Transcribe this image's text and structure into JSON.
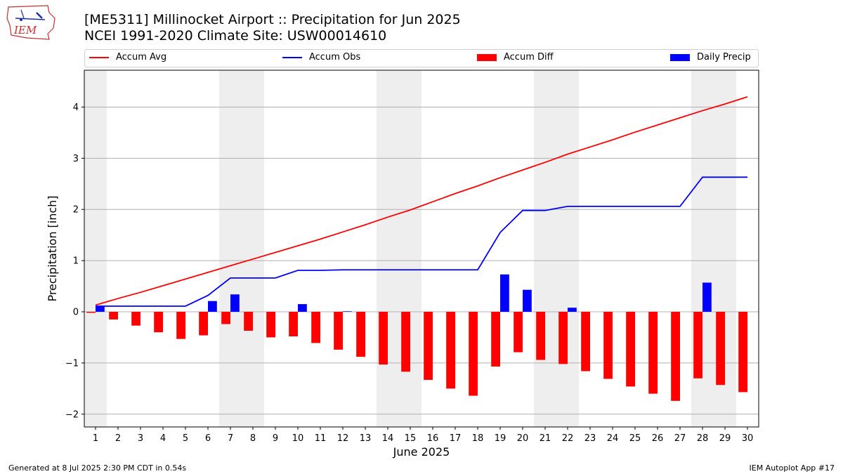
{
  "header": {
    "logo_text": "IEM",
    "title": "[ME5311] Millinocket Airport :: Precipitation for Jun 2025",
    "subtitle": "NCEI 1991-2020 Climate Site: USW00014610"
  },
  "legend": {
    "items": [
      {
        "label": "Accum Avg",
        "kind": "line",
        "color": "#ff0000"
      },
      {
        "label": "Accum Obs",
        "kind": "line",
        "color": "#0000ff"
      },
      {
        "label": "Accum Diff",
        "kind": "bar",
        "color": "#ff0000"
      },
      {
        "label": "Daily Precip",
        "kind": "bar",
        "color": "#0000ff"
      }
    ]
  },
  "footer": {
    "left": "Generated at 8 Jul 2025 2:30 PM CDT in 0.54s",
    "right": "IEM Autoplot App #17"
  },
  "chart_data": {
    "type": "bar",
    "xlabel": "June 2025",
    "ylabel": "Precipitation [inch]",
    "xlim": [
      0.5,
      30.5
    ],
    "ylim": [
      -2.25,
      4.72
    ],
    "yticks": [
      -2,
      -1,
      0,
      1,
      2,
      3,
      4
    ],
    "ytick_labels": [
      "−2",
      "−1",
      "0",
      "1",
      "2",
      "3",
      "4"
    ],
    "days": [
      1,
      2,
      3,
      4,
      5,
      6,
      7,
      8,
      9,
      10,
      11,
      12,
      13,
      14,
      15,
      16,
      17,
      18,
      19,
      20,
      21,
      22,
      23,
      24,
      25,
      26,
      27,
      28,
      29,
      30
    ],
    "weekend_days": [
      1,
      7,
      8,
      14,
      15,
      21,
      22,
      28,
      29
    ],
    "grid": "horizontal",
    "legend_position": "top",
    "series": [
      {
        "name": "Accum Avg",
        "kind": "line",
        "color": "#ff0000",
        "values": [
          0.13,
          0.26,
          0.38,
          0.51,
          0.64,
          0.77,
          0.9,
          1.03,
          1.16,
          1.29,
          1.42,
          1.56,
          1.7,
          1.85,
          1.99,
          2.15,
          2.31,
          2.46,
          2.62,
          2.77,
          2.92,
          3.08,
          3.22,
          3.36,
          3.51,
          3.65,
          3.79,
          3.93,
          4.06,
          4.2
        ]
      },
      {
        "name": "Accum Obs",
        "kind": "line",
        "color": "#0000ff",
        "values": [
          0.11,
          0.11,
          0.11,
          0.11,
          0.11,
          0.32,
          0.66,
          0.66,
          0.66,
          0.81,
          0.81,
          0.82,
          0.82,
          0.82,
          0.82,
          0.82,
          0.82,
          0.82,
          1.55,
          1.98,
          1.98,
          2.06,
          2.06,
          2.06,
          2.06,
          2.06,
          2.06,
          2.63,
          2.63,
          2.63
        ]
      },
      {
        "name": "Accum Diff",
        "kind": "bar",
        "color": "#ff0000",
        "values": [
          -0.02,
          -0.15,
          -0.27,
          -0.4,
          -0.53,
          -0.46,
          -0.24,
          -0.37,
          -0.5,
          -0.48,
          -0.61,
          -0.74,
          -0.88,
          -1.03,
          -1.17,
          -1.33,
          -1.5,
          -1.64,
          -1.07,
          -0.79,
          -0.94,
          -1.02,
          -1.16,
          -1.31,
          -1.46,
          -1.6,
          -1.74,
          -1.3,
          -1.43,
          -1.57
        ]
      },
      {
        "name": "Daily Precip",
        "kind": "bar",
        "color": "#0000ff",
        "values": [
          0.11,
          0,
          0,
          0,
          0,
          0.21,
          0.34,
          0,
          0,
          0.15,
          0,
          0.01,
          0,
          0,
          0,
          0,
          0,
          0,
          0.73,
          0.43,
          0,
          0.08,
          0,
          0,
          0,
          0,
          0,
          0.57,
          0,
          0
        ]
      }
    ]
  }
}
